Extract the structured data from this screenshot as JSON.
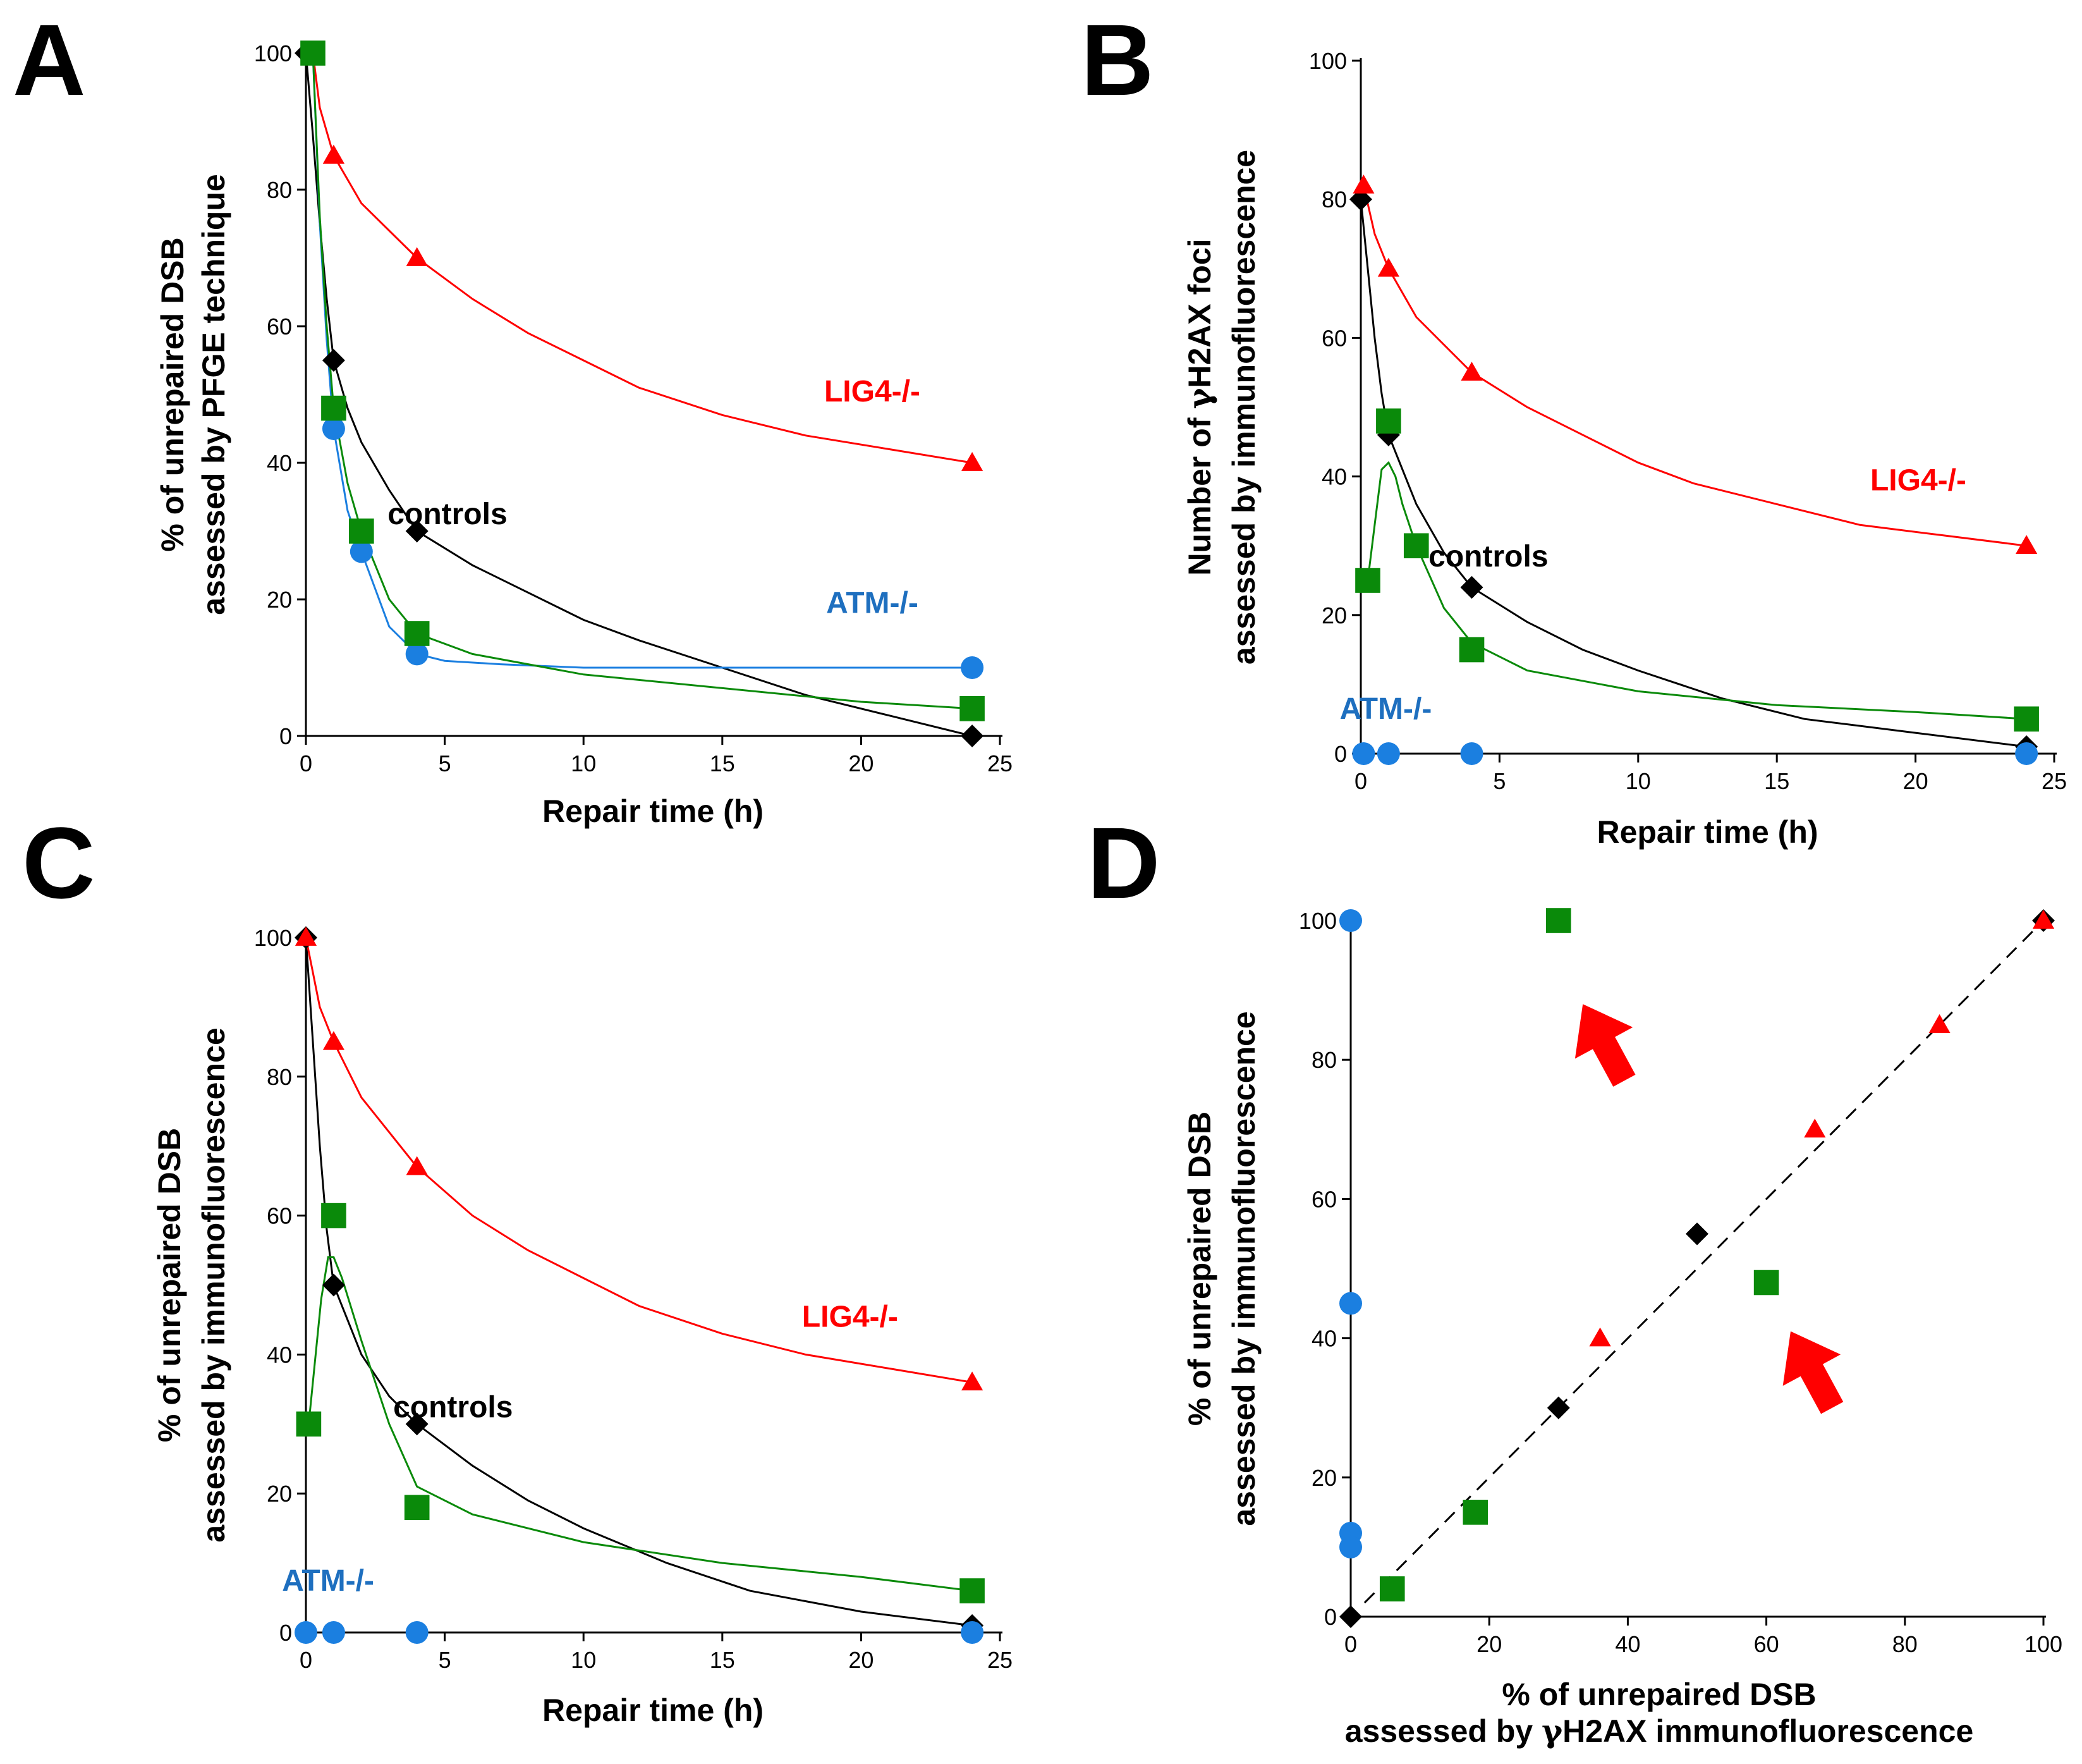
{
  "colors": {
    "controls": "#000000",
    "lig4": "#ff0000",
    "atm": "#1b7fe0",
    "atm_label": "#1e6fbf",
    "green": "#0a8a0a",
    "arrow": "#ff0000"
  },
  "chart_data": [
    {
      "panel": "A",
      "type": "line",
      "xlabel": "Repair time (h)",
      "ylabel_parts": [
        [
          "% of unrepaired ",
          "DSB"
        ],
        [
          "assessed by ",
          "PFGE",
          " technique"
        ]
      ],
      "xticks": [
        0,
        5,
        10,
        15,
        20,
        25
      ],
      "yticks": [
        0,
        20,
        40,
        60,
        80,
        100
      ],
      "xlim": [
        0,
        25
      ],
      "ylim": [
        0,
        100
      ],
      "series": [
        {
          "name": "controls",
          "color_key": "controls",
          "marker": "diamond",
          "x": [
            0,
            1,
            4,
            24
          ],
          "y": [
            100,
            55,
            30,
            0
          ],
          "curve": [
            [
              0,
              100
            ],
            [
              0.25,
              88
            ],
            [
              0.5,
              75
            ],
            [
              0.75,
              64
            ],
            [
              1,
              55
            ],
            [
              1.5,
              48
            ],
            [
              2,
              43
            ],
            [
              3,
              36
            ],
            [
              4,
              30
            ],
            [
              6,
              25
            ],
            [
              8,
              21
            ],
            [
              10,
              17
            ],
            [
              12,
              14
            ],
            [
              15,
              10
            ],
            [
              18,
              6
            ],
            [
              21,
              3
            ],
            [
              24,
              0
            ]
          ]
        },
        {
          "name": "LIG4-/-",
          "color_key": "lig4",
          "marker": "triangle",
          "x": [
            0.25,
            1,
            4,
            24
          ],
          "y": [
            100,
            85,
            70,
            40
          ],
          "curve": [
            [
              0.25,
              100
            ],
            [
              0.5,
              92
            ],
            [
              1,
              85
            ],
            [
              2,
              78
            ],
            [
              4,
              70
            ],
            [
              6,
              64
            ],
            [
              8,
              59
            ],
            [
              10,
              55
            ],
            [
              12,
              51
            ],
            [
              15,
              47
            ],
            [
              18,
              44
            ],
            [
              21,
              42
            ],
            [
              24,
              40
            ]
          ]
        },
        {
          "name": "ATM-/-",
          "color_key": "atm",
          "marker": "circle",
          "x": [
            0.25,
            1,
            2,
            4,
            24
          ],
          "y": [
            100,
            45,
            27,
            12,
            10
          ],
          "curve": [
            [
              0.25,
              100
            ],
            [
              0.5,
              75
            ],
            [
              0.75,
              58
            ],
            [
              1,
              45
            ],
            [
              1.5,
              33
            ],
            [
              2,
              27
            ],
            [
              3,
              16
            ],
            [
              4,
              12
            ],
            [
              5,
              11
            ],
            [
              7,
              10.5
            ],
            [
              10,
              10
            ],
            [
              24,
              10
            ]
          ]
        },
        {
          "name": "green",
          "color_key": "green",
          "marker": "square",
          "x": [
            0.25,
            1,
            2,
            4,
            24
          ],
          "y": [
            100,
            48,
            30,
            15,
            4
          ],
          "curve": [
            [
              0.25,
              100
            ],
            [
              0.5,
              76
            ],
            [
              0.75,
              60
            ],
            [
              1,
              48
            ],
            [
              1.5,
              37
            ],
            [
              2,
              30
            ],
            [
              3,
              20
            ],
            [
              4,
              15
            ],
            [
              6,
              12
            ],
            [
              10,
              9
            ],
            [
              15,
              7
            ],
            [
              20,
              5
            ],
            [
              24,
              4
            ]
          ]
        }
      ],
      "labels": [
        {
          "text": "LIG4-/-",
          "color_key": "lig4",
          "at": [
            20.4,
            49
          ]
        },
        {
          "text": "controls",
          "color_key": "controls",
          "at": [
            5.1,
            31
          ]
        },
        {
          "text": "ATM-/-",
          "color_key": "atm_label",
          "at": [
            20.4,
            18
          ]
        }
      ]
    },
    {
      "panel": "B",
      "type": "line",
      "xlabel": "Repair time (h)",
      "ylabel_parts": [
        [
          "Number of ",
          "γ",
          "H2AX foci"
        ],
        [
          "assessed by immunofluorescence"
        ]
      ],
      "xticks": [
        0,
        5,
        10,
        15,
        20,
        25
      ],
      "yticks": [
        0,
        20,
        40,
        60,
        80,
        100
      ],
      "xlim": [
        0,
        25
      ],
      "ylim": [
        0,
        100
      ],
      "series": [
        {
          "name": "controls",
          "color_key": "controls",
          "marker": "diamond",
          "x": [
            0,
            1,
            4,
            24
          ],
          "y": [
            80,
            46,
            24,
            1
          ],
          "curve": [
            [
              0,
              80
            ],
            [
              0.25,
              70
            ],
            [
              0.5,
              60
            ],
            [
              0.75,
              52
            ],
            [
              1,
              46
            ],
            [
              2,
              36
            ],
            [
              3,
              29
            ],
            [
              4,
              24
            ],
            [
              6,
              19
            ],
            [
              8,
              15
            ],
            [
              10,
              12
            ],
            [
              13,
              8
            ],
            [
              16,
              5
            ],
            [
              20,
              3
            ],
            [
              24,
              1
            ]
          ]
        },
        {
          "name": "LIG4-/-",
          "color_key": "lig4",
          "marker": "triangle",
          "x": [
            0.1,
            1,
            4,
            24
          ],
          "y": [
            82,
            70,
            55,
            30
          ],
          "curve": [
            [
              0.1,
              82
            ],
            [
              0.5,
              75
            ],
            [
              1,
              70
            ],
            [
              2,
              63
            ],
            [
              4,
              55
            ],
            [
              6,
              50
            ],
            [
              8,
              46
            ],
            [
              10,
              42
            ],
            [
              12,
              39
            ],
            [
              15,
              36
            ],
            [
              18,
              33
            ],
            [
              21,
              31.5
            ],
            [
              24,
              30
            ]
          ]
        },
        {
          "name": "ATM-/-",
          "color_key": "atm",
          "marker": "circle",
          "x": [
            0.1,
            1,
            4,
            24
          ],
          "y": [
            0,
            0,
            0,
            0
          ],
          "curve": []
        },
        {
          "name": "green",
          "color_key": "green",
          "marker": "square",
          "x": [
            0.25,
            1,
            2,
            4,
            24
          ],
          "y": [
            25,
            48,
            30,
            15,
            5
          ],
          "curve": [
            [
              0.25,
              25
            ],
            [
              0.5,
              33
            ],
            [
              0.75,
              41
            ],
            [
              1,
              42
            ],
            [
              1.25,
              40
            ],
            [
              1.5,
              36
            ],
            [
              2,
              30
            ],
            [
              3,
              21
            ],
            [
              4,
              16
            ],
            [
              6,
              12
            ],
            [
              10,
              9
            ],
            [
              15,
              7
            ],
            [
              20,
              6
            ],
            [
              24,
              5
            ]
          ]
        }
      ],
      "labels": [
        {
          "text": "LIG4-/-",
          "color_key": "lig4",
          "at": [
            20.1,
            38
          ]
        },
        {
          "text": "controls",
          "color_key": "controls",
          "at": [
            4.6,
            27
          ]
        },
        {
          "text": "ATM-/-",
          "color_key": "atm_label",
          "at": [
            0.9,
            5
          ]
        }
      ]
    },
    {
      "panel": "C",
      "type": "line",
      "xlabel": "Repair time (h)",
      "ylabel_parts": [
        [
          "% of unrepaired ",
          "DSB"
        ],
        [
          "assessed by immunofluorescence"
        ]
      ],
      "xticks": [
        0,
        5,
        10,
        15,
        20,
        25
      ],
      "yticks": [
        0,
        20,
        40,
        60,
        80,
        100
      ],
      "xlim": [
        0,
        25
      ],
      "ylim": [
        0,
        100
      ],
      "series": [
        {
          "name": "controls",
          "color_key": "controls",
          "marker": "diamond",
          "x": [
            0,
            1,
            4,
            24
          ],
          "y": [
            100,
            50,
            30,
            1
          ],
          "curve": [
            [
              0,
              100
            ],
            [
              0.25,
              85
            ],
            [
              0.5,
              70
            ],
            [
              0.75,
              58
            ],
            [
              1,
              50
            ],
            [
              2,
              40
            ],
            [
              3,
              34
            ],
            [
              4,
              30
            ],
            [
              6,
              24
            ],
            [
              8,
              19
            ],
            [
              10,
              15
            ],
            [
              13,
              10
            ],
            [
              16,
              6
            ],
            [
              20,
              3
            ],
            [
              24,
              1
            ]
          ]
        },
        {
          "name": "LIG4-/-",
          "color_key": "lig4",
          "marker": "triangle",
          "x": [
            0,
            1,
            4,
            24
          ],
          "y": [
            100,
            85,
            67,
            36
          ],
          "curve": [
            [
              0,
              100
            ],
            [
              0.5,
              90
            ],
            [
              1,
              85
            ],
            [
              2,
              77
            ],
            [
              4,
              67
            ],
            [
              6,
              60
            ],
            [
              8,
              55
            ],
            [
              10,
              51
            ],
            [
              12,
              47
            ],
            [
              15,
              43
            ],
            [
              18,
              40
            ],
            [
              21,
              38
            ],
            [
              24,
              36
            ]
          ]
        },
        {
          "name": "ATM-/-",
          "color_key": "atm",
          "marker": "circle",
          "x": [
            0,
            1,
            4,
            24
          ],
          "y": [
            0,
            0,
            0,
            0
          ],
          "curve": []
        },
        {
          "name": "green",
          "color_key": "green",
          "marker": "square",
          "x": [
            0.1,
            1,
            4,
            24
          ],
          "y": [
            30,
            60,
            18,
            6
          ],
          "curve": [
            [
              0.1,
              30
            ],
            [
              0.3,
              38
            ],
            [
              0.55,
              48
            ],
            [
              0.8,
              54
            ],
            [
              1,
              54
            ],
            [
              1.3,
              51
            ],
            [
              2,
              42
            ],
            [
              3,
              30
            ],
            [
              4,
              21
            ],
            [
              6,
              17
            ],
            [
              10,
              13
            ],
            [
              15,
              10
            ],
            [
              20,
              8
            ],
            [
              24,
              6
            ]
          ]
        }
      ],
      "labels": [
        {
          "text": "LIG4-/-",
          "color_key": "lig4",
          "at": [
            19.6,
            44
          ]
        },
        {
          "text": "controls",
          "color_key": "controls",
          "at": [
            5.3,
            31
          ]
        },
        {
          "text": "ATM-/-",
          "color_key": "atm_label",
          "at": [
            0.8,
            6
          ]
        }
      ]
    },
    {
      "panel": "D",
      "type": "scatter",
      "xlabel_lines": [
        [
          "% of unrepaired DSB"
        ],
        [
          "assessed by ",
          "γ",
          "H2AX immunofluorescence"
        ]
      ],
      "ylabel_parts": [
        [
          "% of unrepaired ",
          "DSB"
        ],
        [
          "assessed by immunofluorescence"
        ]
      ],
      "xticks": [
        0,
        20,
        40,
        60,
        80,
        100
      ],
      "yticks": [
        0,
        20,
        40,
        60,
        80,
        100
      ],
      "xlim": [
        0,
        100
      ],
      "ylim": [
        0,
        100
      ],
      "diagonal": {
        "x": [
          2,
          100
        ],
        "y": [
          2,
          100
        ],
        "style": "dashed"
      },
      "series": [
        {
          "name": "controls",
          "color_key": "controls",
          "marker": "diamond",
          "x": [
            0,
            30,
            50,
            100
          ],
          "y": [
            0,
            30,
            55,
            100
          ]
        },
        {
          "name": "LIG4-/-",
          "color_key": "lig4",
          "marker": "triangle",
          "x": [
            36,
            67,
            85,
            100
          ],
          "y": [
            40,
            70,
            85,
            100
          ]
        },
        {
          "name": "ATM-/-",
          "color_key": "atm",
          "marker": "circle",
          "x": [
            0,
            0,
            0,
            0
          ],
          "y": [
            100,
            45,
            12,
            10
          ]
        },
        {
          "name": "green",
          "color_key": "green",
          "marker": "square",
          "x": [
            6,
            18,
            30,
            60
          ],
          "y": [
            4,
            15,
            100,
            48
          ]
        }
      ],
      "arrows": [
        {
          "color_key": "arrow",
          "tip": [
            33.5,
            88
          ],
          "tail": [
            39.5,
            77
          ]
        },
        {
          "color_key": "arrow",
          "tip": [
            63.5,
            41
          ],
          "tail": [
            69.5,
            30
          ]
        }
      ]
    }
  ]
}
